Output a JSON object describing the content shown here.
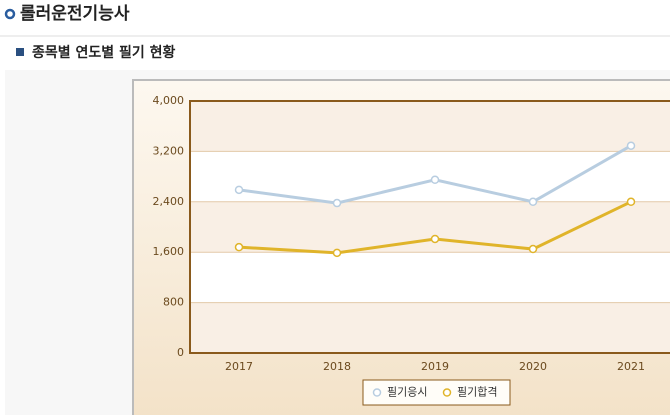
{
  "header": {
    "title": "롤러운전기능사",
    "subtitle": "종목별 연도별 필기 현황"
  },
  "chart_data": {
    "type": "line",
    "categories": [
      "2017",
      "2018",
      "2019",
      "2020",
      "2021"
    ],
    "series": [
      {
        "name": "필기응시",
        "color": "#b8cde0",
        "values": [
          2590,
          2380,
          2750,
          2400,
          3290
        ]
      },
      {
        "name": "필기합격",
        "color": "#e0b42a",
        "values": [
          1680,
          1590,
          1810,
          1650,
          2400
        ]
      }
    ],
    "ylim": [
      0,
      4000
    ],
    "yticks": [
      0,
      800,
      {
        "value": 1600,
        "label": "1,600"
      },
      {
        "value": 2400,
        "label": "2,400"
      },
      {
        "value": 3200,
        "label": "3,200"
      },
      {
        "value": 4000,
        "label": "4,000"
      }
    ],
    "grid": true,
    "legend": "bottom"
  }
}
